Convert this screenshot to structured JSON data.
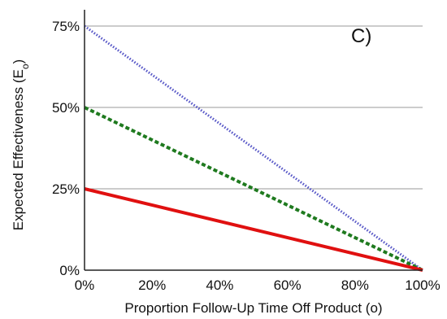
{
  "chart_data": {
    "type": "line",
    "panel_label": "C)",
    "xlabel": "Proportion Follow-Up Time Off Product (o)",
    "ylabel_main": "Expected Effectiveness (E",
    "ylabel_sub": "o",
    "ylabel_close": ")",
    "xlim": [
      0,
      100
    ],
    "ylim": [
      0,
      80
    ],
    "xticks": [
      0,
      20,
      40,
      60,
      80,
      100
    ],
    "xtick_labels": [
      "0%",
      "20%",
      "40%",
      "60%",
      "80%",
      "100%"
    ],
    "yticks": [
      0,
      25,
      50,
      75
    ],
    "ytick_labels": [
      "0%",
      "25%",
      "50%",
      "75%"
    ],
    "grid": "horizontal",
    "series": [
      {
        "x": [
          0,
          100
        ],
        "values": [
          75,
          0
        ],
        "color": "#5a5ac8",
        "style": "dotted"
      },
      {
        "x": [
          0,
          100
        ],
        "values": [
          50,
          0
        ],
        "color": "#1f7a1f",
        "style": "dashed"
      },
      {
        "x": [
          0,
          100
        ],
        "values": [
          25,
          0
        ],
        "color": "#e01010",
        "style": "solid"
      }
    ]
  }
}
